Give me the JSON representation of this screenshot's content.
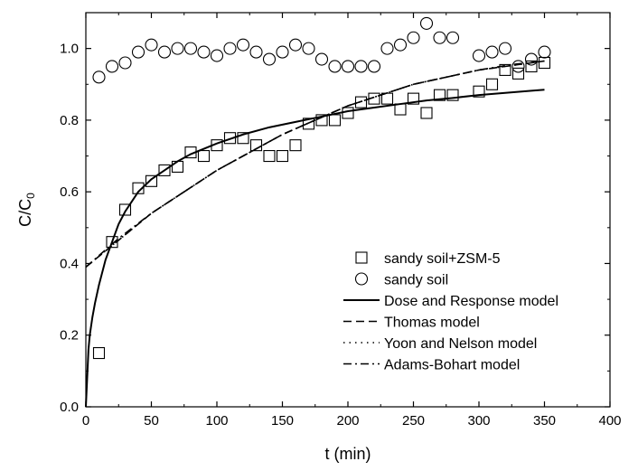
{
  "chart_data": {
    "type": "scatter",
    "xlabel": "t (min)",
    "ylabel_main": "C/C",
    "ylabel_sub": "0",
    "xlim": [
      0,
      400
    ],
    "ylim": [
      0,
      1.1
    ],
    "xticks": [
      0,
      50,
      100,
      150,
      200,
      250,
      300,
      350,
      400
    ],
    "yticks": [
      0.0,
      0.2,
      0.4,
      0.6,
      0.8,
      1.0
    ],
    "xtick_labels": [
      "0",
      "50",
      "100",
      "150",
      "200",
      "250",
      "300",
      "350",
      "400"
    ],
    "ytick_labels": [
      "0.0",
      "0.2",
      "0.4",
      "0.6",
      "0.8",
      "1.0"
    ],
    "grid": false,
    "legend_position": "lower-right",
    "series": [
      {
        "name": "sandy soil+ZSM-5",
        "kind": "scatter",
        "marker": "square",
        "x": [
          10,
          20,
          30,
          40,
          50,
          60,
          70,
          80,
          90,
          100,
          110,
          120,
          130,
          140,
          150,
          160,
          170,
          180,
          190,
          200,
          210,
          220,
          230,
          240,
          250,
          260,
          270,
          280,
          300,
          310,
          320,
          330,
          340,
          350
        ],
        "y": [
          0.15,
          0.46,
          0.55,
          0.61,
          0.63,
          0.66,
          0.67,
          0.71,
          0.7,
          0.73,
          0.75,
          0.75,
          0.73,
          0.7,
          0.7,
          0.73,
          0.79,
          0.8,
          0.8,
          0.82,
          0.85,
          0.86,
          0.86,
          0.83,
          0.86,
          0.82,
          0.87,
          0.87,
          0.88,
          0.9,
          0.94,
          0.93,
          0.95,
          0.96
        ]
      },
      {
        "name": "sandy soil",
        "kind": "scatter",
        "marker": "circle",
        "x": [
          10,
          20,
          30,
          40,
          50,
          60,
          70,
          80,
          90,
          100,
          110,
          120,
          130,
          140,
          150,
          160,
          170,
          180,
          190,
          200,
          210,
          220,
          230,
          240,
          250,
          260,
          270,
          280,
          300,
          310,
          320,
          330,
          340,
          350
        ],
        "y": [
          0.92,
          0.95,
          0.96,
          0.99,
          1.01,
          0.99,
          1.0,
          1.0,
          0.99,
          0.98,
          1.0,
          1.01,
          0.99,
          0.97,
          0.99,
          1.01,
          1.0,
          0.97,
          0.95,
          0.95,
          0.95,
          0.95,
          1.0,
          1.01,
          1.03,
          1.07,
          1.03,
          1.03,
          0.98,
          0.99,
          1.0,
          0.95,
          0.97,
          0.99
        ]
      },
      {
        "name": "Dose and Response model",
        "kind": "line",
        "dash": "solid",
        "x": [
          0,
          1,
          2,
          3,
          5,
          7,
          10,
          15,
          20,
          25,
          30,
          40,
          50,
          60,
          70,
          80,
          100,
          120,
          140,
          160,
          180,
          200,
          220,
          240,
          260,
          280,
          300,
          320,
          340,
          350
        ],
        "y": [
          0.0,
          0.08,
          0.16,
          0.2,
          0.25,
          0.29,
          0.34,
          0.41,
          0.46,
          0.51,
          0.545,
          0.6,
          0.635,
          0.66,
          0.685,
          0.705,
          0.735,
          0.76,
          0.78,
          0.795,
          0.81,
          0.825,
          0.835,
          0.845,
          0.855,
          0.862,
          0.87,
          0.876,
          0.882,
          0.885
        ]
      },
      {
        "name": "Thomas model",
        "kind": "line",
        "dash": "dashed",
        "x": [
          0,
          50,
          100,
          150,
          200,
          250,
          300,
          350
        ],
        "y": [
          0.39,
          0.54,
          0.66,
          0.76,
          0.84,
          0.9,
          0.94,
          0.965
        ]
      },
      {
        "name": "Yoon and Nelson model",
        "kind": "line",
        "dash": "dotted",
        "x": [
          0,
          50,
          100,
          150,
          200,
          250,
          300,
          350
        ],
        "y": [
          0.39,
          0.54,
          0.66,
          0.76,
          0.84,
          0.9,
          0.94,
          0.965
        ]
      },
      {
        "name": "Adams-Bohart model",
        "kind": "line",
        "dash": "dashdot",
        "x": [
          0,
          25,
          50,
          75,
          100,
          125,
          150,
          175,
          200,
          225,
          250,
          275,
          300,
          325,
          350
        ],
        "y": [
          0.39,
          0.47,
          0.54,
          0.6,
          0.66,
          0.71,
          0.76,
          0.8,
          0.84,
          0.87,
          0.9,
          0.92,
          0.94,
          0.955,
          0.965
        ]
      }
    ]
  }
}
